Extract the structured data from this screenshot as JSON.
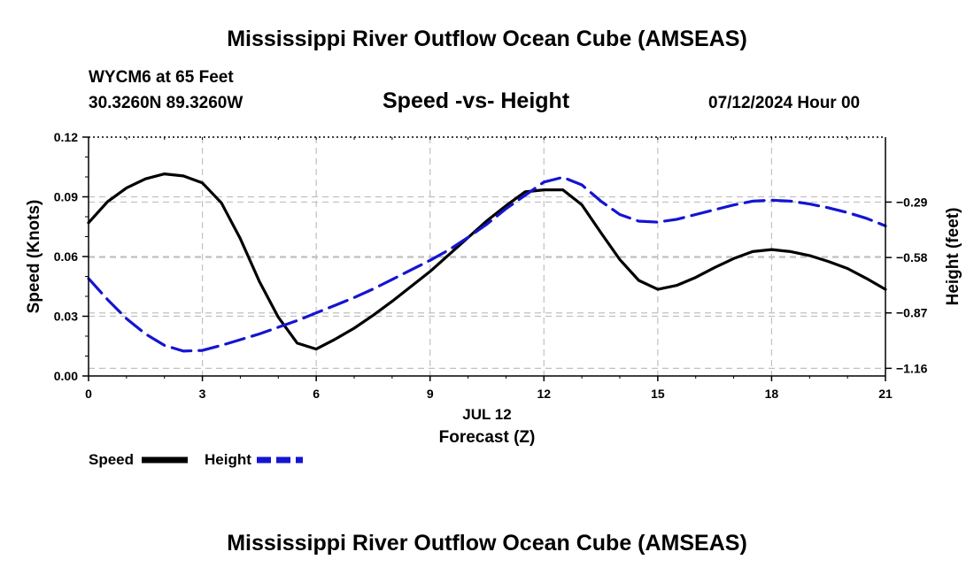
{
  "header": {
    "title": "Mississippi River Outflow Ocean Cube (AMSEAS)",
    "station": "WYCM6 at 65 Feet",
    "coords": "30.3260N  89.3260W",
    "subtitle": "Speed -vs- Height",
    "datetime": "07/12/2024 Hour 00"
  },
  "footer": {
    "title": "Mississippi River Outflow Ocean Cube (AMSEAS)"
  },
  "legend": {
    "speed_label": "Speed",
    "height_label": "Height",
    "speed_color": "#000000",
    "height_color": "#1414d2"
  },
  "chart_data": {
    "type": "line",
    "title": "Speed -vs- Height",
    "xlabel": "Forecast (Z)",
    "xdate": "JUL 12",
    "ylabel": "Speed (Knots)",
    "y2label": "Height (feet)",
    "xlim": [
      0,
      21
    ],
    "ylim": [
      0,
      0.12
    ],
    "y2lim": [
      -1.2,
      0.05
    ],
    "xticks": [
      "0",
      "3",
      "6",
      "9",
      "12",
      "15",
      "18",
      "21"
    ],
    "yticks": [
      "0.00",
      "0.03",
      "0.06",
      "0.09",
      "0.12"
    ],
    "y2ticks": [
      "−0.29",
      "−0.58",
      "−0.87",
      "−1.16"
    ],
    "y2tick_values": [
      -0.29,
      -0.58,
      -0.87,
      -1.16
    ],
    "series": [
      {
        "name": "Speed",
        "axis": "left",
        "style": "solid",
        "color": "#000000",
        "x": [
          0,
          0.5,
          1,
          1.5,
          2,
          2.5,
          3,
          3.5,
          4,
          4.5,
          5,
          5.5,
          6,
          6.5,
          7,
          7.5,
          8,
          8.5,
          9,
          9.5,
          10,
          10.5,
          11,
          11.5,
          12,
          12.5,
          13,
          13.5,
          14,
          14.5,
          15,
          15.5,
          16,
          16.5,
          17,
          17.5,
          18,
          18.5,
          19,
          19.5,
          20,
          20.5,
          21
        ],
        "values": [
          0.077,
          0.0875,
          0.0945,
          0.099,
          0.1015,
          0.1005,
          0.097,
          0.087,
          0.069,
          0.0475,
          0.0295,
          0.0165,
          0.0135,
          0.0185,
          0.024,
          0.0305,
          0.0375,
          0.045,
          0.0525,
          0.061,
          0.0695,
          0.078,
          0.0855,
          0.0925,
          0.0935,
          0.0935,
          0.086,
          0.072,
          0.0585,
          0.048,
          0.0435,
          0.0455,
          0.0495,
          0.0545,
          0.059,
          0.0625,
          0.0635,
          0.0625,
          0.0605,
          0.0575,
          0.054,
          0.049,
          0.0435
        ]
      },
      {
        "name": "Height",
        "axis": "right",
        "style": "dashed",
        "color": "#1414d2",
        "x": [
          0,
          0.5,
          1,
          1.5,
          2,
          2.5,
          3,
          3.5,
          4,
          4.5,
          5,
          5.5,
          6,
          6.5,
          7,
          7.5,
          8,
          8.5,
          9,
          9.5,
          10,
          10.5,
          11,
          11.5,
          12,
          12.5,
          13,
          13.5,
          14,
          14.5,
          15,
          15.5,
          16,
          16.5,
          17,
          17.5,
          18,
          18.5,
          19,
          19.5,
          20,
          20.5,
          21
        ],
        "values": [
          -0.69,
          -0.8,
          -0.9,
          -0.98,
          -1.04,
          -1.07,
          -1.066,
          -1.04,
          -1.01,
          -0.98,
          -0.945,
          -0.91,
          -0.87,
          -0.83,
          -0.79,
          -0.745,
          -0.695,
          -0.645,
          -0.595,
          -0.54,
          -0.475,
          -0.405,
          -0.325,
          -0.255,
          -0.185,
          -0.16,
          -0.2,
          -0.285,
          -0.355,
          -0.39,
          -0.395,
          -0.38,
          -0.355,
          -0.33,
          -0.305,
          -0.285,
          -0.28,
          -0.285,
          -0.3,
          -0.32,
          -0.345,
          -0.375,
          -0.415
        ]
      }
    ]
  }
}
